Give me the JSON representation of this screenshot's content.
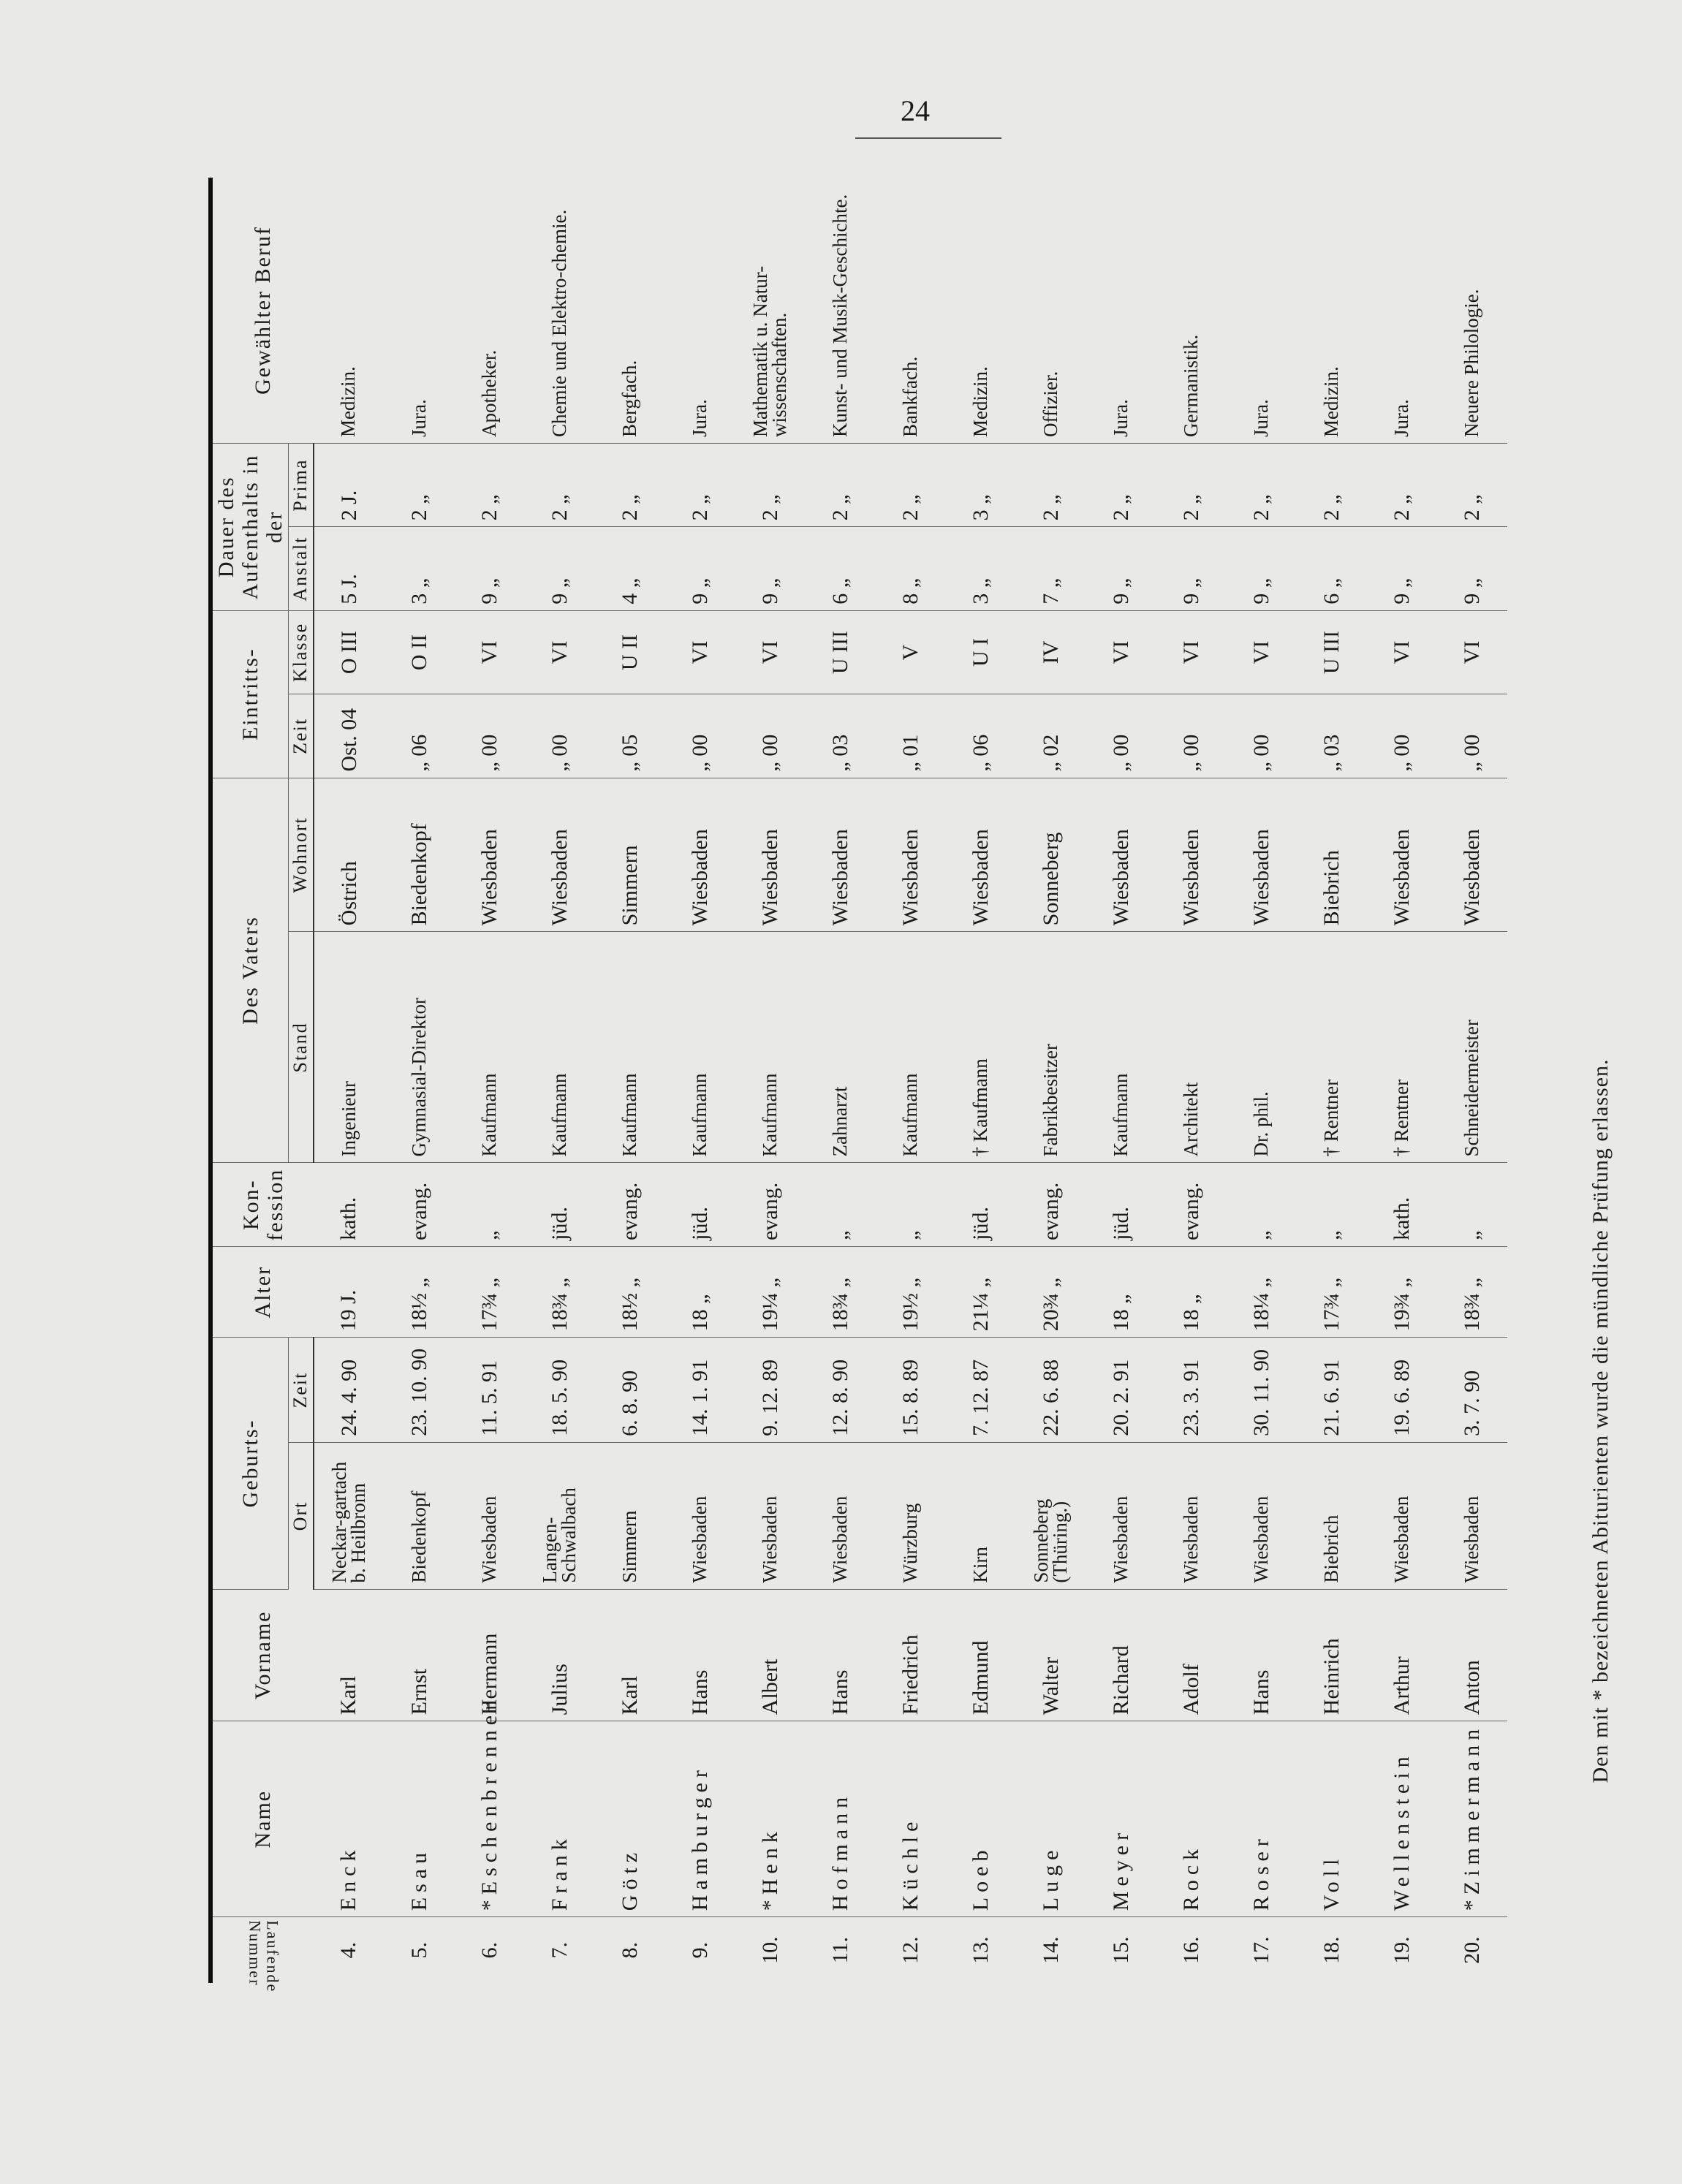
{
  "page_number": "24",
  "headers": {
    "nr": "Laufende Nummer",
    "name": "Name",
    "vorname": "Vorname",
    "geburt": "Geburts-",
    "geburt_ort": "Ort",
    "geburt_zeit": "Zeit",
    "alter": "Alter",
    "konfession": "Kon-fession",
    "vater": "Des Vaters",
    "vater_stand": "Stand",
    "vater_wohnort": "Wohnort",
    "eintritt": "Eintritts-",
    "eintritt_zeit": "Zeit",
    "eintritt_klasse": "Klasse",
    "dauer": "Dauer des Aufenthalts in der",
    "dauer_anstalt": "Anstalt",
    "dauer_prima": "Prima",
    "beruf": "Gewählter Beruf"
  },
  "rows": [
    {
      "nr": "4.",
      "name": "Enck",
      "vorname": "Karl",
      "ort": "Neckar-gartach b. Heilbronn",
      "zeit": "24. 4. 90",
      "alter": "19 J.",
      "konfession": "kath.",
      "stand": "Ingenieur",
      "wohnort": "Östrich",
      "ein_zeit": "Ost. 04",
      "klasse": "O III",
      "anstalt": "5 J.",
      "prima": "2 J.",
      "beruf": "Medizin."
    },
    {
      "nr": "5.",
      "name": "Esau",
      "vorname": "Ernst",
      "ort": "Biedenkopf",
      "zeit": "23. 10. 90",
      "alter": "18½ „",
      "konfession": "evang.",
      "stand": "Gymnasial-Direktor",
      "wohnort": "Biedenkopf",
      "ein_zeit": "„ 06",
      "klasse": "O II",
      "anstalt": "3 „",
      "prima": "2 „",
      "beruf": "Jura."
    },
    {
      "nr": "6.",
      "name": "*Eschenbrenner",
      "vorname": "Hermann",
      "ort": "Wiesbaden",
      "zeit": "11. 5. 91",
      "alter": "17¾ „",
      "konfession": "„",
      "stand": "Kaufmann",
      "wohnort": "Wiesbaden",
      "ein_zeit": "„ 00",
      "klasse": "VI",
      "anstalt": "9 „",
      "prima": "2 „",
      "beruf": "Apotheker."
    },
    {
      "nr": "7.",
      "name": "Frank",
      "vorname": "Julius",
      "ort": "Langen-Schwalbach",
      "zeit": "18. 5. 90",
      "alter": "18¾ „",
      "konfession": "jüd.",
      "stand": "Kaufmann",
      "wohnort": "Wiesbaden",
      "ein_zeit": "„ 00",
      "klasse": "VI",
      "anstalt": "9 „",
      "prima": "2 „",
      "beruf": "Chemie und Elektro-chemie."
    },
    {
      "nr": "8.",
      "name": "Götz",
      "vorname": "Karl",
      "ort": "Simmern",
      "zeit": "6. 8. 90",
      "alter": "18½ „",
      "konfession": "evang.",
      "stand": "Kaufmann",
      "wohnort": "Simmern",
      "ein_zeit": "„ 05",
      "klasse": "U II",
      "anstalt": "4 „",
      "prima": "2 „",
      "beruf": "Bergfach."
    },
    {
      "nr": "9.",
      "name": "Hamburger",
      "vorname": "Hans",
      "ort": "Wiesbaden",
      "zeit": "14. 1. 91",
      "alter": "18 „",
      "konfession": "jüd.",
      "stand": "Kaufmann",
      "wohnort": "Wiesbaden",
      "ein_zeit": "„ 00",
      "klasse": "VI",
      "anstalt": "9 „",
      "prima": "2 „",
      "beruf": "Jura."
    },
    {
      "nr": "10.",
      "name": "*Henk",
      "vorname": "Albert",
      "ort": "Wiesbaden",
      "zeit": "9. 12. 89",
      "alter": "19¼ „",
      "konfession": "evang.",
      "stand": "Kaufmann",
      "wohnort": "Wiesbaden",
      "ein_zeit": "„ 00",
      "klasse": "VI",
      "anstalt": "9 „",
      "prima": "2 „",
      "beruf": "Mathematik u. Natur-wissenschaften."
    },
    {
      "nr": "11.",
      "name": "Hofmann",
      "vorname": "Hans",
      "ort": "Wiesbaden",
      "zeit": "12. 8. 90",
      "alter": "18¾ „",
      "konfession": "„",
      "stand": "Zahnarzt",
      "wohnort": "Wiesbaden",
      "ein_zeit": "„ 03",
      "klasse": "U III",
      "anstalt": "6 „",
      "prima": "2 „",
      "beruf": "Kunst- und Musik-Geschichte."
    },
    {
      "nr": "12.",
      "name": "Küchle",
      "vorname": "Friedrich",
      "ort": "Würzburg",
      "zeit": "15. 8. 89",
      "alter": "19½ „",
      "konfession": "„",
      "stand": "Kaufmann",
      "wohnort": "Wiesbaden",
      "ein_zeit": "„ 01",
      "klasse": "V",
      "anstalt": "8 „",
      "prima": "2 „",
      "beruf": "Bankfach."
    },
    {
      "nr": "13.",
      "name": "Loeb",
      "vorname": "Edmund",
      "ort": "Kirn",
      "zeit": "7. 12. 87",
      "alter": "21¼ „",
      "konfession": "jüd.",
      "stand": "† Kaufmann",
      "wohnort": "Wiesbaden",
      "ein_zeit": "„ 06",
      "klasse": "U I",
      "anstalt": "3 „",
      "prima": "3 „",
      "beruf": "Medizin."
    },
    {
      "nr": "14.",
      "name": "Luge",
      "vorname": "Walter",
      "ort": "Sonneberg (Thüring.)",
      "zeit": "22. 6. 88",
      "alter": "20¾ „",
      "konfession": "evang.",
      "stand": "Fabrikbesitzer",
      "wohnort": "Sonneberg",
      "ein_zeit": "„ 02",
      "klasse": "IV",
      "anstalt": "7 „",
      "prima": "2 „",
      "beruf": "Offizier."
    },
    {
      "nr": "15.",
      "name": "Meyer",
      "vorname": "Richard",
      "ort": "Wiesbaden",
      "zeit": "20. 2. 91",
      "alter": "18 „",
      "konfession": "jüd.",
      "stand": "Kaufmann",
      "wohnort": "Wiesbaden",
      "ein_zeit": "„ 00",
      "klasse": "VI",
      "anstalt": "9 „",
      "prima": "2 „",
      "beruf": "Jura."
    },
    {
      "nr": "16.",
      "name": "Rock",
      "vorname": "Adolf",
      "ort": "Wiesbaden",
      "zeit": "23. 3. 91",
      "alter": "18 „",
      "konfession": "evang.",
      "stand": "Architekt",
      "wohnort": "Wiesbaden",
      "ein_zeit": "„ 00",
      "klasse": "VI",
      "anstalt": "9 „",
      "prima": "2 „",
      "beruf": "Germanistik."
    },
    {
      "nr": "17.",
      "name": "Roser",
      "vorname": "Hans",
      "ort": "Wiesbaden",
      "zeit": "30. 11. 90",
      "alter": "18¼ „",
      "konfession": "„",
      "stand": "Dr. phil.",
      "wohnort": "Wiesbaden",
      "ein_zeit": "„ 00",
      "klasse": "VI",
      "anstalt": "9 „",
      "prima": "2 „",
      "beruf": "Jura."
    },
    {
      "nr": "18.",
      "name": "Voll",
      "vorname": "Heinrich",
      "ort": "Biebrich",
      "zeit": "21. 6. 91",
      "alter": "17¾ „",
      "konfession": "„",
      "stand": "† Rentner",
      "wohnort": "Biebrich",
      "ein_zeit": "„ 03",
      "klasse": "U III",
      "anstalt": "6 „",
      "prima": "2 „",
      "beruf": "Medizin."
    },
    {
      "nr": "19.",
      "name": "Wellenstein",
      "vorname": "Arthur",
      "ort": "Wiesbaden",
      "zeit": "19. 6. 89",
      "alter": "19¾ „",
      "konfession": "kath.",
      "stand": "† Rentner",
      "wohnort": "Wiesbaden",
      "ein_zeit": "„ 00",
      "klasse": "VI",
      "anstalt": "9 „",
      "prima": "2 „",
      "beruf": "Jura."
    },
    {
      "nr": "20.",
      "name": "*Zimmermann",
      "vorname": "Anton",
      "ort": "Wiesbaden",
      "zeit": "3. 7. 90",
      "alter": "18¾ „",
      "konfession": "„",
      "stand": "Schneidermeister",
      "wohnort": "Wiesbaden",
      "ein_zeit": "„ 00",
      "klasse": "VI",
      "anstalt": "9 „",
      "prima": "2 „",
      "beruf": "Neuere Philologie."
    }
  ],
  "footnote": "Den mit * bezeichneten Abiturienten wurde die mündliche Prüfung erlassen."
}
